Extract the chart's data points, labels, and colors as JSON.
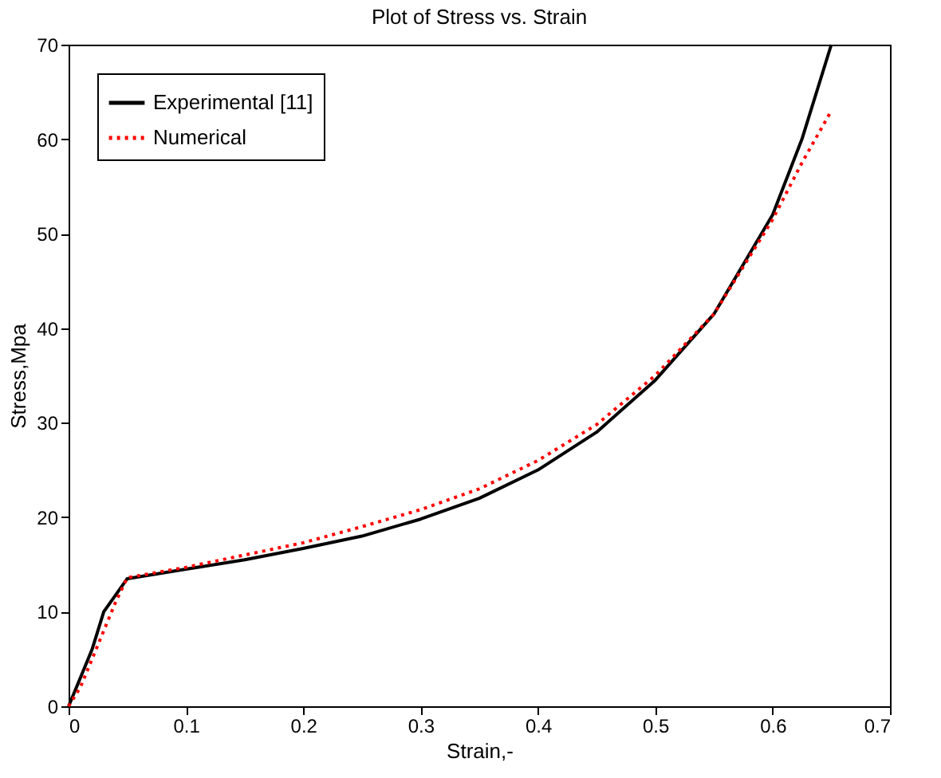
{
  "chart_data": {
    "type": "line",
    "title": "Plot of Stress vs. Strain",
    "xlabel": "Strain,-",
    "ylabel": "Stress,Mpa",
    "xlim": [
      0,
      0.7
    ],
    "xticks": [
      0,
      0.1,
      0.2,
      0.3,
      0.4,
      0.5,
      0.6,
      0.7
    ],
    "ylim": [
      0,
      70
    ],
    "yticks": [
      0,
      10,
      20,
      30,
      40,
      50,
      60,
      70
    ],
    "grid": false,
    "legend": "top left",
    "series": [
      {
        "name": "Experimental [11]",
        "color": "#000000",
        "line_style": "solid",
        "x": [
          0,
          0.01,
          0.02,
          0.03,
          0.05,
          0.1,
          0.15,
          0.2,
          0.25,
          0.3,
          0.35,
          0.4,
          0.45,
          0.5,
          0.55,
          0.6,
          0.625,
          0.65
        ],
        "values": [
          0,
          3,
          6,
          10,
          13.5,
          14.5,
          15.5,
          16.7,
          18,
          19.8,
          22,
          25,
          29,
          34.5,
          41.5,
          52,
          60,
          70
        ]
      },
      {
        "name": "Numerical",
        "color": "#ff0000",
        "line_style": "dotted",
        "x": [
          0,
          0.01,
          0.02,
          0.03,
          0.04,
          0.05,
          0.1,
          0.15,
          0.2,
          0.25,
          0.3,
          0.35,
          0.4,
          0.45,
          0.5,
          0.55,
          0.6,
          0.625,
          0.65
        ],
        "values": [
          0,
          2,
          5,
          8,
          11,
          13.6,
          14.7,
          16,
          17.3,
          19,
          20.8,
          23,
          26,
          29.8,
          35,
          41.5,
          51.5,
          57.5,
          63
        ]
      }
    ]
  }
}
